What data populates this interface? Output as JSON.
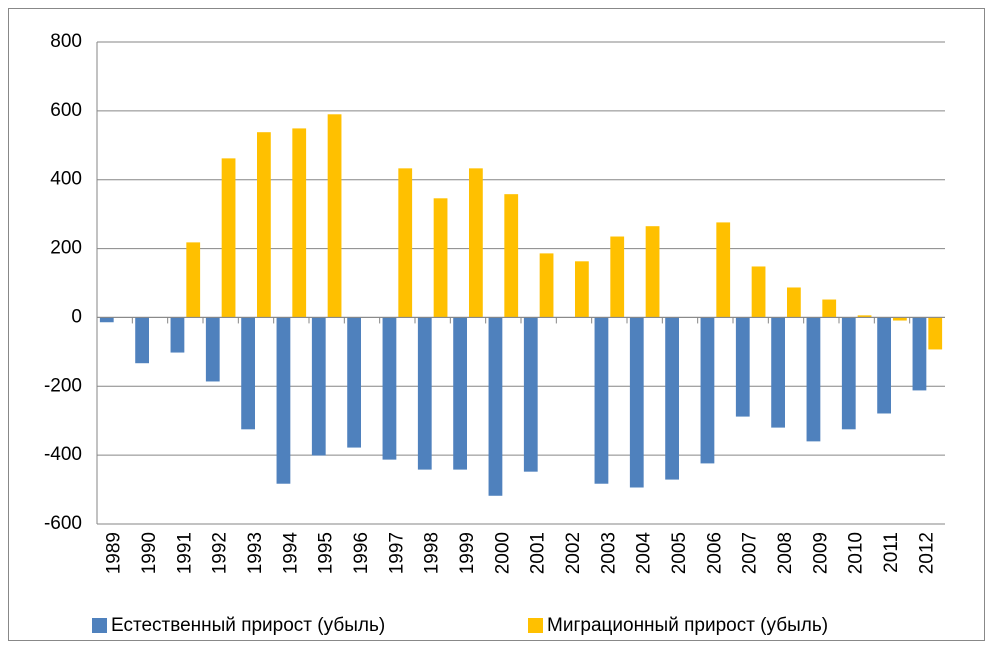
{
  "chart_data": {
    "type": "bar",
    "categories": [
      "1989",
      "1990",
      "1991",
      "1992",
      "1993",
      "1994",
      "1995",
      "1996",
      "1997",
      "1998",
      "1999",
      "2000",
      "2001",
      "2002",
      "2003",
      "2004",
      "2005",
      "2006",
      "2007",
      "2008",
      "2009",
      "2010",
      "2011",
      "2012"
    ],
    "series": [
      {
        "name": "Естественный прирост (убыль)",
        "color": "#4f81bd",
        "values": [
          -14,
          -133,
          -102,
          -186,
          -325,
          -483,
          -401,
          -378,
          -413,
          -442,
          -442,
          -518,
          -448,
          null,
          -483,
          -494,
          -471,
          -424,
          -288,
          -320,
          -360,
          -325,
          -279,
          -212
        ]
      },
      {
        "name": "Миграционный прирост (убыль)",
        "color": "#ffc000",
        "values": [
          null,
          null,
          218,
          462,
          538,
          549,
          590,
          null,
          433,
          346,
          433,
          358,
          186,
          163,
          235,
          265,
          null,
          276,
          148,
          87,
          52,
          6,
          -9,
          -93
        ]
      }
    ],
    "ylim": [
      -600,
      800
    ],
    "yticks": [
      -600,
      -400,
      -200,
      0,
      200,
      400,
      600,
      800
    ],
    "grid": true,
    "legend": "bottom"
  }
}
